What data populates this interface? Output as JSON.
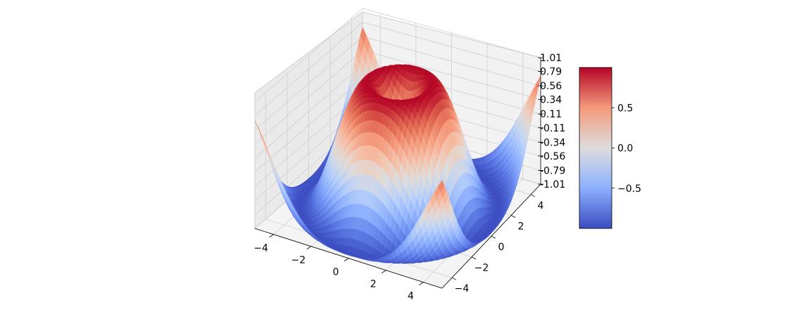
{
  "chart_data": {
    "type": "surface",
    "function": "sin(sqrt(x^2 + y^2))",
    "colormap": "coolwarm",
    "colors": {
      "low": "#3b4cc0",
      "mid": "#dddddd",
      "high": "#b40426"
    },
    "grid": true,
    "x_range": [
      -5,
      5
    ],
    "y_range": [
      -5,
      5
    ],
    "zlim": [
      -1.01,
      1.01
    ],
    "x_ticks": [
      "−4",
      "−2",
      "0",
      "2",
      "4"
    ],
    "y_ticks": [
      "−4",
      "−2",
      "0",
      "2",
      "4"
    ],
    "z_ticks": [
      "-1.01",
      "-0.79",
      "-0.56",
      "-0.34",
      "-0.11",
      "0.11",
      "0.34",
      "0.56",
      "0.79",
      "1.01"
    ],
    "colorbar": {
      "range": [
        -1,
        1
      ],
      "ticks": [
        "−0.5",
        "0.0",
        "0.5"
      ]
    }
  }
}
